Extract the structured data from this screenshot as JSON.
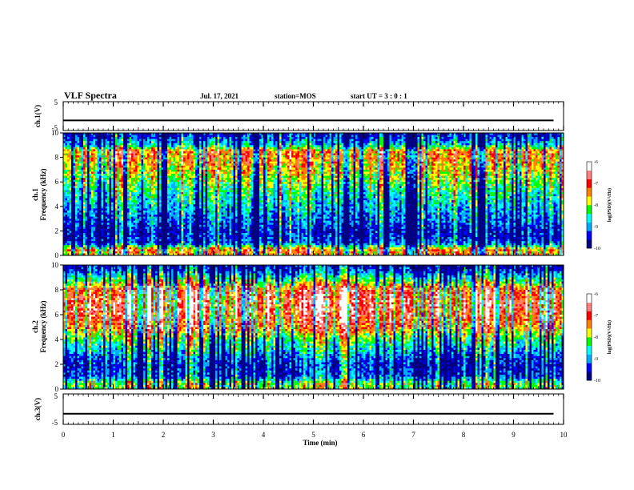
{
  "header": {
    "title": "VLF Spectra",
    "date": "Jul. 17, 2021",
    "station": "station=MOS",
    "start": "start UT =  3 : 0 : 1"
  },
  "chart_data": [
    {
      "type": "line",
      "ylabel": "ch.1(V)",
      "ylim": [
        -5,
        5
      ],
      "yticks": [
        "5",
        "-5"
      ],
      "x": [
        0,
        9.8
      ],
      "y": [
        -1.5,
        -1.5
      ]
    },
    {
      "type": "heatmap",
      "ylabel_line1": "ch.1",
      "ylabel_line2": "Frequency (kHz)",
      "ylim": [
        0,
        10
      ],
      "yticks": [
        "0",
        "2",
        "4",
        "6",
        "8",
        "10"
      ],
      "xlim": [
        0,
        10
      ],
      "colorbar": {
        "label": "log(PSD)(V²/Hz)",
        "range": [
          -10,
          -6
        ],
        "ticks": [
          "-6",
          "-7",
          "-8",
          "-9",
          "-10"
        ],
        "colors": [
          "#000080",
          "#0000ff",
          "#00aaff",
          "#00ffff",
          "#00ff00",
          "#ffff00",
          "#ff8000",
          "#ff0000",
          "#ff8080",
          "#ffffff"
        ]
      },
      "profile": {
        "freq_khz": [
          0.5,
          1,
          2,
          3,
          4,
          5,
          6,
          7,
          8,
          8.5,
          9,
          9.5,
          10
        ],
        "log_psd": [
          -7.5,
          -9.4,
          -9.6,
          -9.2,
          -8.9,
          -8.6,
          -8.2,
          -7.8,
          -7.5,
          -7.4,
          -8.8,
          -9.3,
          -9.6
        ]
      }
    },
    {
      "type": "heatmap",
      "ylabel_line1": "ch.2",
      "ylabel_line2": "Frequency (kHz)",
      "ylim": [
        0,
        10
      ],
      "yticks": [
        "0",
        "2",
        "4",
        "6",
        "8",
        "10"
      ],
      "xlim": [
        0,
        10
      ],
      "colorbar": {
        "label": "log(PSD)(V²/Hz)",
        "range": [
          -10,
          -6
        ],
        "ticks": [
          "-6",
          "-7",
          "-8",
          "-9",
          "-10"
        ],
        "colors": [
          "#000080",
          "#0000ff",
          "#00aaff",
          "#00ffff",
          "#00ff00",
          "#ffff00",
          "#ff8000",
          "#ff0000",
          "#ff8080",
          "#ffffff"
        ]
      },
      "profile": {
        "freq_khz": [
          0.5,
          1,
          2,
          3,
          4,
          5,
          6,
          7,
          8,
          8.5,
          9,
          9.5,
          10
        ],
        "log_psd": [
          -8.2,
          -9.3,
          -9.5,
          -8.9,
          -8.3,
          -7.4,
          -6.9,
          -6.8,
          -7.1,
          -7.9,
          -8.6,
          -9.3,
          -9.7
        ]
      }
    },
    {
      "type": "line",
      "ylabel": "ch.3(V)",
      "ylim": [
        -5,
        5
      ],
      "yticks": [
        "5",
        "-5"
      ],
      "x": [
        0,
        9.8
      ],
      "y": [
        -1.5,
        -1.5
      ]
    }
  ],
  "xaxis": {
    "label": "Time (min)",
    "xlim": [
      0,
      10
    ],
    "ticks": [
      "0",
      "1",
      "2",
      "3",
      "4",
      "5",
      "6",
      "7",
      "8",
      "9",
      "10"
    ]
  }
}
